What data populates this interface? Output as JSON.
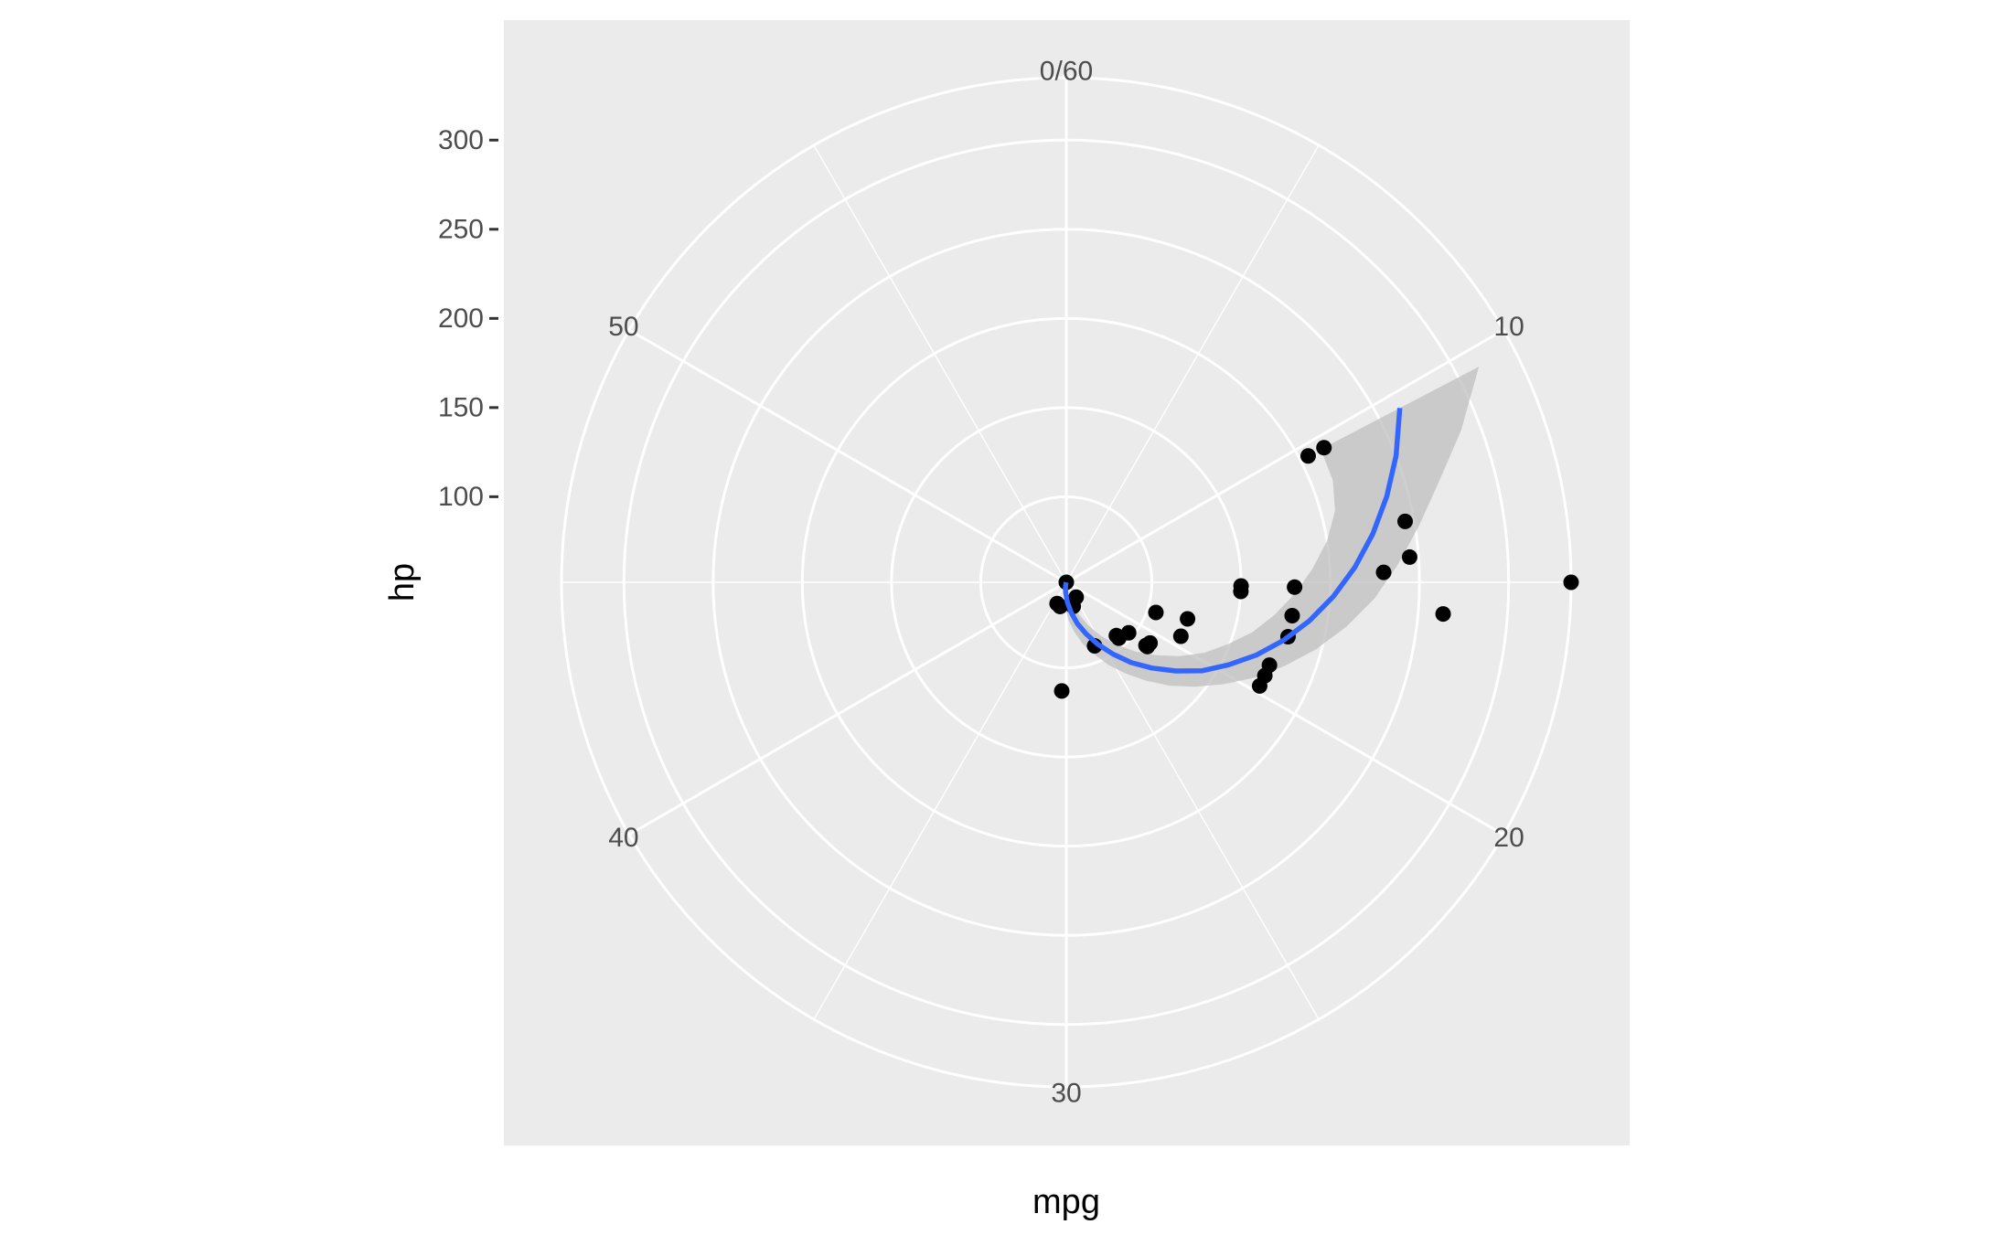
{
  "chart_data": {
    "type": "scatter",
    "coord": "polar",
    "title": "",
    "xlabel": "mpg",
    "ylabel": "hp",
    "theta": {
      "range": [
        0,
        60
      ],
      "tick_values": [
        0,
        10,
        20,
        30,
        40,
        50
      ],
      "tick_labels": [
        "0/60",
        "10",
        "20",
        "30",
        "40",
        "50"
      ],
      "direction": "clockwise",
      "start": "top"
    },
    "radius": {
      "range": [
        52,
        335
      ],
      "tick_values": [
        100,
        150,
        200,
        250,
        300
      ],
      "tick_labels": [
        "100",
        "150",
        "200",
        "250",
        "300"
      ],
      "grid_values": [
        100,
        150,
        200,
        250,
        300,
        335
      ]
    },
    "grid": true,
    "colors": {
      "panel": "#ebebeb",
      "grid": "#ffffff",
      "points": "#000000",
      "smooth": "#3366ff",
      "ribbon": "#bfbfbf"
    },
    "points": [
      {
        "x": 21.0,
        "y": 110
      },
      {
        "x": 21.0,
        "y": 110
      },
      {
        "x": 22.8,
        "y": 93
      },
      {
        "x": 21.4,
        "y": 110
      },
      {
        "x": 18.7,
        "y": 175
      },
      {
        "x": 18.1,
        "y": 105
      },
      {
        "x": 14.3,
        "y": 245
      },
      {
        "x": 24.4,
        "y": 62
      },
      {
        "x": 22.8,
        "y": 95
      },
      {
        "x": 19.2,
        "y": 123
      },
      {
        "x": 17.8,
        "y": 123
      },
      {
        "x": 16.4,
        "y": 180
      },
      {
        "x": 17.3,
        "y": 180
      },
      {
        "x": 15.2,
        "y": 180
      },
      {
        "x": 10.4,
        "y": 205
      },
      {
        "x": 10.4,
        "y": 215
      },
      {
        "x": 14.7,
        "y": 230
      },
      {
        "x": 32.4,
        "y": 66
      },
      {
        "x": 30.4,
        "y": 52
      },
      {
        "x": 33.9,
        "y": 65
      },
      {
        "x": 21.5,
        "y": 97
      },
      {
        "x": 15.5,
        "y": 150
      },
      {
        "x": 15.2,
        "y": 150
      },
      {
        "x": 13.3,
        "y": 245
      },
      {
        "x": 19.2,
        "y": 175
      },
      {
        "x": 27.3,
        "y": 66
      },
      {
        "x": 26.0,
        "y": 91
      },
      {
        "x": 30.4,
        "y": 113
      },
      {
        "x": 15.8,
        "y": 264
      },
      {
        "x": 19.7,
        "y": 175
      },
      {
        "x": 15.0,
        "y": 335
      },
      {
        "x": 21.4,
        "y": 109
      }
    ],
    "smooth": {
      "method": "loess",
      "series": [
        {
          "x": 10.4,
          "y": 263,
          "ymin": 213,
          "ymax": 313
        },
        {
          "x": 11.5,
          "y": 250,
          "ymin": 212,
          "ymax": 289
        },
        {
          "x": 12.5,
          "y": 238,
          "ymin": 208,
          "ymax": 268
        },
        {
          "x": 13.5,
          "y": 226,
          "ymin": 200,
          "ymax": 252
        },
        {
          "x": 14.5,
          "y": 214,
          "ymin": 190,
          "ymax": 238
        },
        {
          "x": 15.5,
          "y": 202,
          "ymin": 180,
          "ymax": 225
        },
        {
          "x": 16.5,
          "y": 190,
          "ymin": 170,
          "ymax": 211
        },
        {
          "x": 17.5,
          "y": 178,
          "ymin": 160,
          "ymax": 197
        },
        {
          "x": 18.5,
          "y": 166,
          "ymin": 149,
          "ymax": 183
        },
        {
          "x": 19.5,
          "y": 154,
          "ymin": 139,
          "ymax": 170
        },
        {
          "x": 20.5,
          "y": 143,
          "ymin": 128,
          "ymax": 157
        },
        {
          "x": 21.5,
          "y": 131,
          "ymin": 117,
          "ymax": 145
        },
        {
          "x": 22.5,
          "y": 120,
          "ymin": 107,
          "ymax": 134
        },
        {
          "x": 23.5,
          "y": 110,
          "ymin": 97,
          "ymax": 123
        },
        {
          "x": 24.5,
          "y": 100,
          "ymin": 88,
          "ymax": 113
        },
        {
          "x": 25.5,
          "y": 91,
          "ymin": 79,
          "ymax": 104
        },
        {
          "x": 26.5,
          "y": 83,
          "ymin": 71,
          "ymax": 95
        },
        {
          "x": 27.5,
          "y": 76,
          "ymin": 65,
          "ymax": 88
        },
        {
          "x": 28.5,
          "y": 69,
          "ymin": 59,
          "ymax": 80
        },
        {
          "x": 29.5,
          "y": 63,
          "ymin": 54,
          "ymax": 73
        },
        {
          "x": 30.5,
          "y": 58,
          "ymin": 52,
          "ymax": 65
        },
        {
          "x": 31.5,
          "y": 55,
          "ymin": 52,
          "ymax": 60
        },
        {
          "x": 32.5,
          "y": 53,
          "ymin": 52,
          "ymax": 56
        },
        {
          "x": 33.9,
          "y": 52,
          "ymin": 52,
          "ymax": 52
        }
      ]
    }
  }
}
